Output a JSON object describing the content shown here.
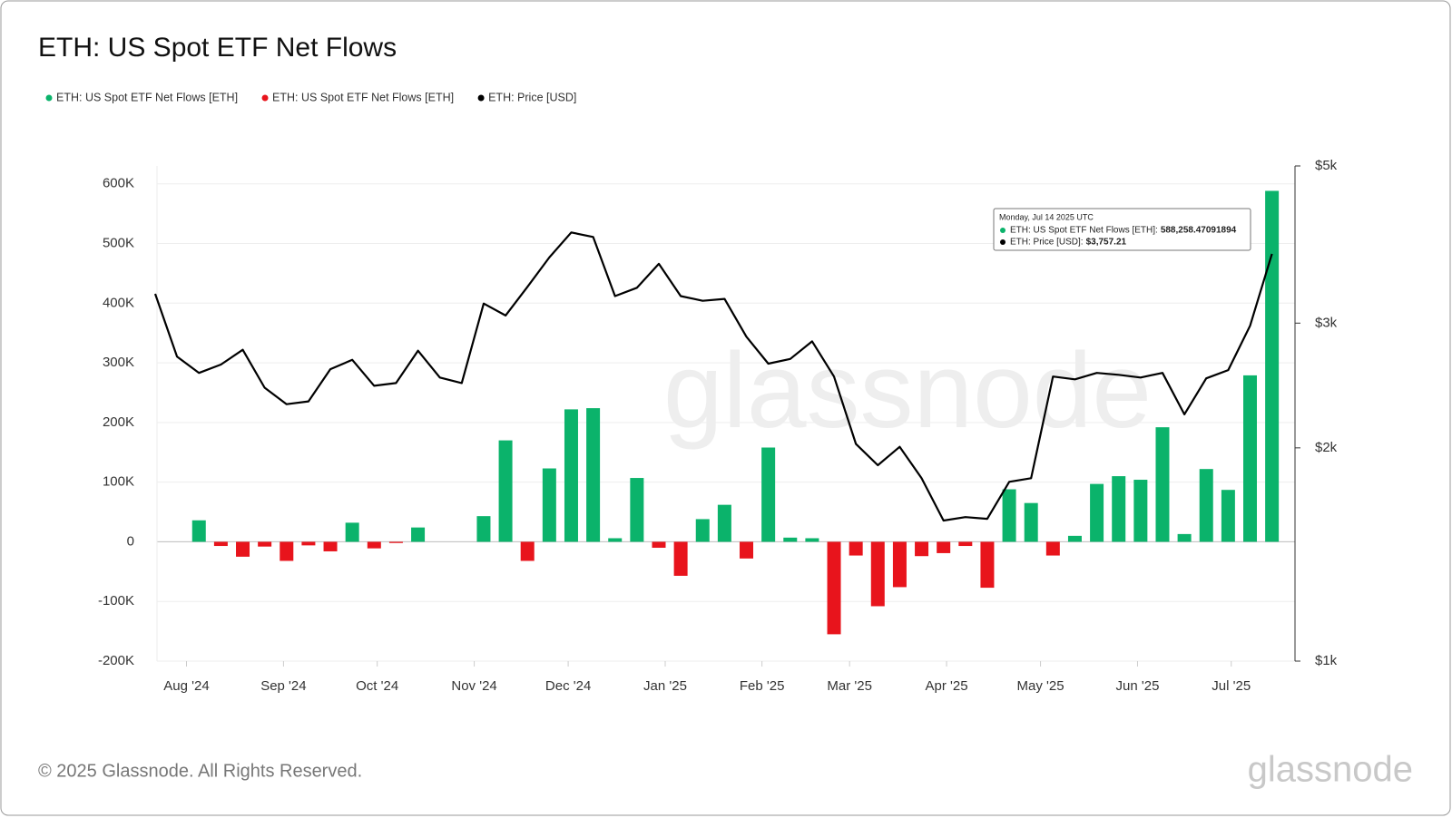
{
  "chart_data": {
    "type": "bar",
    "title": "ETH: US Spot ETF Net Flows",
    "watermark": "glassnode",
    "footer": "© 2025 Glassnode. All Rights Reserved.",
    "logo": "glassnode",
    "categories": [
      null,
      null,
      null,
      null,
      null,
      null,
      null,
      null,
      null,
      null,
      null,
      null,
      null,
      null,
      null,
      null,
      null,
      null,
      null,
      null,
      null,
      null,
      null,
      null,
      null,
      null,
      null,
      null,
      null,
      null,
      null,
      null,
      null,
      null,
      null,
      null,
      null,
      null,
      null,
      null,
      null,
      null,
      null,
      null,
      null,
      null,
      null,
      null,
      null,
      null,
      null,
      null
    ],
    "xticks": [
      {
        "value": 1.43,
        "label": "Aug '24"
      },
      {
        "value": 5.86,
        "label": "Sep '24"
      },
      {
        "value": 10.14,
        "label": "Oct '24"
      },
      {
        "value": 14.57,
        "label": "Nov '24"
      },
      {
        "value": 18.86,
        "label": "Dec '24"
      },
      {
        "value": 23.29,
        "label": "Jan '25"
      },
      {
        "value": 27.71,
        "label": "Feb '25"
      },
      {
        "value": 31.71,
        "label": "Mar '25"
      },
      {
        "value": 36.14,
        "label": "Apr '25"
      },
      {
        "value": 40.43,
        "label": "May '25"
      },
      {
        "value": 44.86,
        "label": "Jun '25"
      },
      {
        "value": 49.14,
        "label": "Jul '25"
      }
    ],
    "ylim": [
      -200000,
      630000
    ],
    "yticks": [
      {
        "value": -200000,
        "label": "-200K"
      },
      {
        "value": -100000,
        "label": "-100K"
      },
      0,
      {
        "value": 100000,
        "label": "100K"
      },
      {
        "value": 200000,
        "label": "200K"
      },
      {
        "value": 300000,
        "label": "300K"
      },
      {
        "value": 400000,
        "label": "400K"
      },
      {
        "value": 500000,
        "label": "500K"
      },
      {
        "value": 600000,
        "label": "600K"
      }
    ],
    "y2lim": [
      1000,
      5000
    ],
    "y2scale": "log",
    "y2ticks": [
      {
        "value": 1000,
        "label": "$1k"
      },
      {
        "value": 2000,
        "label": "$2k"
      },
      {
        "value": 3000,
        "label": "$3k"
      },
      {
        "value": 5000,
        "label": "$5k"
      }
    ],
    "grid": true,
    "series": [
      {
        "name": "ETH: US Spot ETF Net Flows [ETH]",
        "color": "#0bb36b",
        "type": "bar",
        "values": [
          null,
          null,
          36000,
          null,
          null,
          null,
          null,
          null,
          null,
          32000,
          null,
          null,
          24000,
          null,
          null,
          43000,
          170000,
          null,
          123000,
          222000,
          224000,
          6000,
          107000,
          null,
          null,
          38000,
          62000,
          null,
          158000,
          7000,
          6000,
          null,
          null,
          null,
          null,
          null,
          null,
          null,
          null,
          88000,
          65000,
          null,
          10000,
          97000,
          110000,
          104000,
          192000,
          13000,
          122000,
          87000,
          279000,
          588258.47091894
        ]
      },
      {
        "name": "ETH: US Spot ETF Net Flows [ETH]",
        "color": "#e8141c",
        "type": "bar",
        "values": [
          null,
          null,
          null,
          -7000,
          -25000,
          -8000,
          -32000,
          -6000,
          -16000,
          null,
          -11000,
          -2000,
          null,
          null,
          null,
          null,
          null,
          -32000,
          null,
          null,
          null,
          null,
          null,
          -10000,
          -57000,
          null,
          null,
          -28000,
          null,
          null,
          null,
          -155000,
          -23000,
          -108000,
          -76000,
          -24000,
          -19000,
          -7000,
          -77000,
          null,
          null,
          -23000,
          null,
          null,
          null,
          null,
          null,
          null,
          null,
          null,
          null,
          null
        ]
      },
      {
        "name": "ETH: Price [USD]",
        "color": "#000000",
        "type": "line",
        "axis": "y2",
        "values": [
          3300,
          2690,
          2552,
          2622,
          2751,
          2432,
          2305,
          2326,
          2583,
          2662,
          2447,
          2469,
          2743,
          2514,
          2469,
          3197,
          3075,
          3375,
          3714,
          4028,
          3969,
          3275,
          3365,
          3638,
          3275,
          3226,
          3246,
          2870,
          2630,
          2670,
          2827,
          2522,
          2025,
          1890,
          2007,
          1812,
          1579,
          1597,
          1588,
          1791,
          1812,
          2522,
          2499,
          2552,
          2536,
          2514,
          2552,
          2230,
          2507,
          2575,
          2974,
          3757.21
        ]
      }
    ],
    "tooltip": {
      "title": "Monday, Jul 14 2025 UTC",
      "flow_label": "ETH: US Spot ETF Net Flows [ETH]:",
      "flow_value": "588,258.47091894",
      "price_label": "ETH: Price [USD]:",
      "price_value": "$3,757.21"
    }
  }
}
